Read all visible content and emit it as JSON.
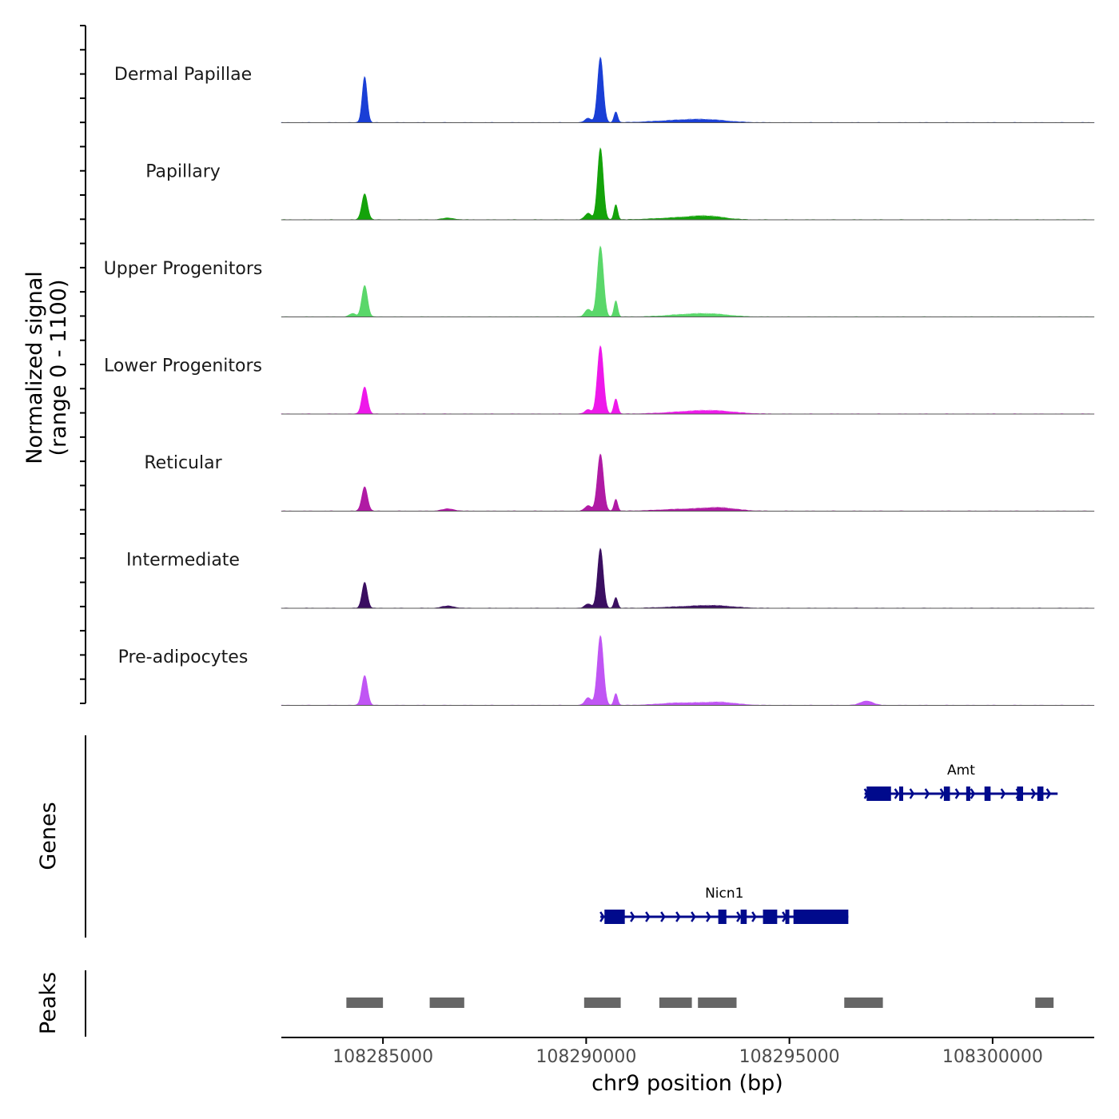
{
  "chart_data": {
    "type": "area",
    "chromosome": "chr9",
    "xrange": [
      108282500,
      108302500
    ],
    "x_ticks": [
      108285000,
      108290000,
      108295000,
      108300000
    ],
    "x_tick_labels": [
      "108285000",
      "108290000",
      "108295000",
      "108300000"
    ],
    "xlabel": "chr9 position (bp)",
    "ylabel_line1": "Normalized signal",
    "ylabel_line2": "(range 0 - 1100)",
    "ylim": [
      0,
      1100
    ],
    "genes_label": "Genes",
    "peaks_label": "Peaks",
    "tracks": [
      {
        "name": "Dermal Papillae",
        "color": "#1a3fd6",
        "peaks": [
          [
            108284550,
            60,
            85,
            0
          ],
          [
            108290350,
            70,
            120,
            0
          ],
          [
            108290730,
            45,
            20,
            0
          ],
          [
            108290050,
            80,
            8,
            0
          ],
          [
            108292200,
            600,
            4,
            1
          ],
          [
            108293000,
            500,
            5,
            1
          ]
        ]
      },
      {
        "name": "Papillary",
        "color": "#14a30a",
        "peaks": [
          [
            108284550,
            70,
            48,
            0
          ],
          [
            108290350,
            70,
            132,
            0
          ],
          [
            108290730,
            45,
            28,
            0
          ],
          [
            108290050,
            80,
            12,
            0
          ],
          [
            108286600,
            150,
            3,
            0
          ],
          [
            108292300,
            600,
            4,
            1
          ],
          [
            108293000,
            400,
            6,
            1
          ]
        ]
      },
      {
        "name": "Upper Progenitors",
        "color": "#5ad76a",
        "peaks": [
          [
            108284550,
            70,
            58,
            0
          ],
          [
            108290350,
            75,
            130,
            0
          ],
          [
            108290730,
            45,
            30,
            0
          ],
          [
            108290050,
            80,
            14,
            0
          ],
          [
            108284250,
            80,
            6,
            0
          ],
          [
            108292400,
            500,
            4,
            1
          ],
          [
            108293100,
            450,
            5,
            1
          ]
        ]
      },
      {
        "name": "Lower Progenitors",
        "color": "#ee18ea",
        "peaks": [
          [
            108284550,
            70,
            50,
            0
          ],
          [
            108290350,
            75,
            125,
            0
          ],
          [
            108290730,
            50,
            28,
            0
          ],
          [
            108290050,
            80,
            8,
            0
          ],
          [
            108292500,
            600,
            4,
            1
          ],
          [
            108293200,
            500,
            5,
            1
          ]
        ]
      },
      {
        "name": "Reticular",
        "color": "#b01aa4",
        "peaks": [
          [
            108284550,
            70,
            45,
            0
          ],
          [
            108290350,
            75,
            105,
            0
          ],
          [
            108290730,
            45,
            22,
            0
          ],
          [
            108290050,
            80,
            10,
            0
          ],
          [
            108286600,
            150,
            4,
            0
          ],
          [
            108292400,
            600,
            4,
            1
          ],
          [
            108293300,
            400,
            6,
            1
          ]
        ]
      },
      {
        "name": "Intermediate",
        "color": "#3a0e60",
        "peaks": [
          [
            108284550,
            65,
            48,
            0
          ],
          [
            108290350,
            70,
            110,
            0
          ],
          [
            108290730,
            45,
            20,
            0
          ],
          [
            108290050,
            80,
            8,
            0
          ],
          [
            108286600,
            150,
            4,
            0
          ],
          [
            108292500,
            600,
            3,
            1
          ],
          [
            108293200,
            450,
            4,
            1
          ]
        ]
      },
      {
        "name": "Pre-adipocytes",
        "color": "#c055f4",
        "peaks": [
          [
            108284550,
            70,
            55,
            0
          ],
          [
            108290350,
            75,
            128,
            0
          ],
          [
            108290730,
            45,
            22,
            0
          ],
          [
            108290050,
            80,
            14,
            0
          ],
          [
            108292300,
            500,
            5,
            1
          ],
          [
            108293300,
            400,
            6,
            1
          ],
          [
            108296900,
            150,
            8,
            0
          ]
        ]
      }
    ],
    "genes": [
      {
        "name": "Amt",
        "start": 108296850,
        "end": 108301600,
        "strand": "+",
        "exons": [
          [
            108296900,
            108297500
          ],
          [
            108297700,
            108297800
          ],
          [
            108298800,
            108298950
          ],
          [
            108299350,
            108299450
          ],
          [
            108299800,
            108299950
          ],
          [
            108300600,
            108300750
          ],
          [
            108301100,
            108301250
          ]
        ]
      },
      {
        "name": "Nicn1",
        "start": 108290350,
        "end": 108296450,
        "strand": "+",
        "exons": [
          [
            108290450,
            108290950
          ],
          [
            108293250,
            108293450
          ],
          [
            108293800,
            108293950
          ],
          [
            108294350,
            108294700
          ],
          [
            108294900,
            108294980
          ],
          [
            108295100,
            108296450
          ]
        ]
      }
    ],
    "peak_regions": [
      [
        108284100,
        108285000
      ],
      [
        108286150,
        108287000
      ],
      [
        108289950,
        108290850
      ],
      [
        108291800,
        108292600
      ],
      [
        108292750,
        108293700
      ],
      [
        108296350,
        108297300
      ],
      [
        108301050,
        108301500
      ]
    ]
  }
}
